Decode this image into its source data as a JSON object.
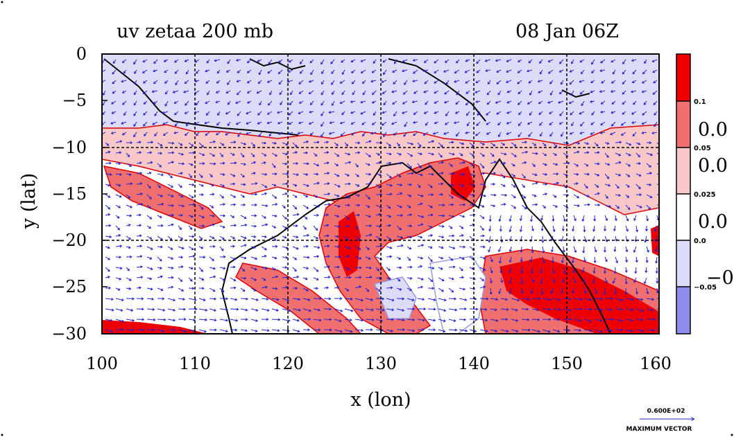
{
  "header": {
    "left_title": "uv zetaa 200 mb",
    "right_title": "08 Jan 06Z"
  },
  "axes": {
    "xlabel": "x (lon)",
    "ylabel": "y (lat)",
    "x_ticks": [
      "100",
      "110",
      "120",
      "130",
      "140",
      "150",
      "160"
    ],
    "y_ticks": [
      "0",
      "−5",
      "−10",
      "−15",
      "−20",
      "−25",
      "−30"
    ],
    "x_range": [
      100,
      160
    ],
    "y_range": [
      -30,
      0
    ]
  },
  "colorbar": {
    "tick_labels": [
      "0.1",
      "0.05",
      "0.025",
      "0.0",
      "−0.05"
    ],
    "clipped_labels": [
      "0.0",
      "0.0",
      "0.0",
      "−0."
    ],
    "colors": [
      "#ee0000",
      "#f07070",
      "#f8c8c8",
      "#ffffff",
      "#dcdcf8",
      "#8c8cec"
    ]
  },
  "vector_legend": {
    "magnitude": "0.600E+02",
    "label": "MAXIMUM VECTOR"
  },
  "colors": {
    "positive_contour": "#e00000",
    "negative_contour": "#9a9ae0",
    "vector": "#2020d0",
    "coastline": "#000000",
    "grid": "#000000"
  },
  "grid": true,
  "projection": "lat-lon"
}
